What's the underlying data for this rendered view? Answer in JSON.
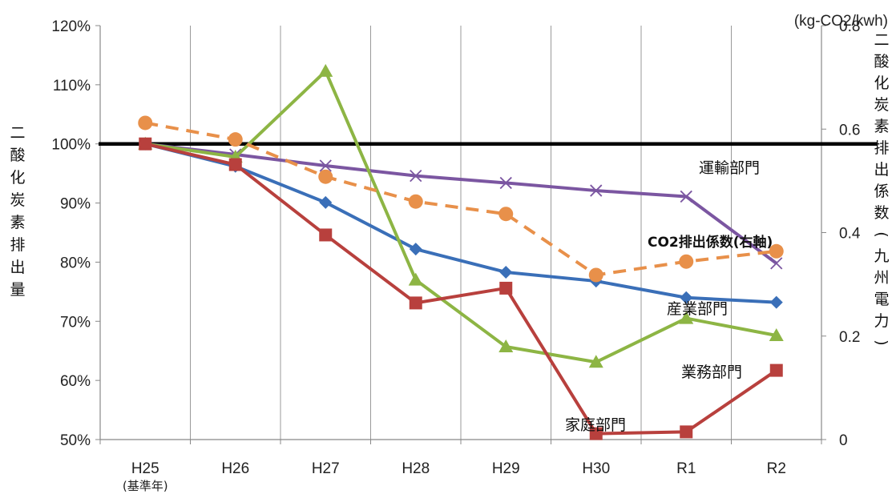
{
  "chart_data": {
    "type": "line",
    "categories": [
      "H25",
      "H26",
      "H27",
      "H28",
      "H29",
      "H30",
      "R1",
      "R2"
    ],
    "category_sublabels": [
      "(基準年)",
      "",
      "",
      "",
      "",
      "",
      "",
      ""
    ],
    "left_axis": {
      "label": "二酸化炭素排出量",
      "ylim": [
        50,
        120
      ],
      "ticks": [
        50,
        60,
        70,
        80,
        90,
        100,
        110,
        120
      ],
      "tick_labels": [
        "50%",
        "60%",
        "70%",
        "80%",
        "90%",
        "100%",
        "110%",
        "120%"
      ],
      "reference_line": 100
    },
    "right_axis": {
      "label": "二酸化炭素排出係数(九州電力)",
      "unit": "(kg-CO2/kwh)",
      "ylim": [
        0,
        0.8
      ],
      "ticks": [
        0,
        0.2,
        0.4,
        0.6,
        0.8
      ],
      "tick_labels": [
        "0",
        "0.2",
        "0.4",
        "0.6",
        "0.8"
      ]
    },
    "grid": "vertical",
    "series": [
      {
        "name": "運輸部門",
        "axis": "left",
        "color": "#7B56A1",
        "marker": "x",
        "dashed": false,
        "values": [
          100,
          98.2,
          96.3,
          94.6,
          93.4,
          92.1,
          91.1,
          79.8
        ]
      },
      {
        "name": "産業部門",
        "axis": "left",
        "color": "#3A6FB8",
        "marker": "diamond",
        "dashed": false,
        "values": [
          100,
          96.2,
          90.1,
          82.2,
          78.3,
          76.8,
          74.0,
          73.2
        ]
      },
      {
        "name": "",
        "axis": "left",
        "color": "#8DB544",
        "marker": "triangle",
        "dashed": false,
        "values": [
          100,
          97.8,
          112.3,
          77.0,
          65.7,
          63.1,
          70.5,
          67.6
        ]
      },
      {
        "name": "家庭部門",
        "axis": "left",
        "color": "#B8403D",
        "marker": "square",
        "dashed": false,
        "values": [
          100,
          96.5,
          84.6,
          73.1,
          75.6,
          51.0,
          51.3,
          61.7
        ]
      },
      {
        "name": "CO2排出係数(右軸)",
        "axis": "right",
        "color": "#E8904A",
        "marker": "circle",
        "dashed": true,
        "values": [
          0.612,
          0.58,
          0.508,
          0.46,
          0.436,
          0.318,
          0.344,
          0.364
        ]
      }
    ],
    "annotations": [
      "運輸部門",
      "CO2排出係数(右軸)",
      "産業部門",
      "業務部門",
      "家庭部門"
    ]
  }
}
